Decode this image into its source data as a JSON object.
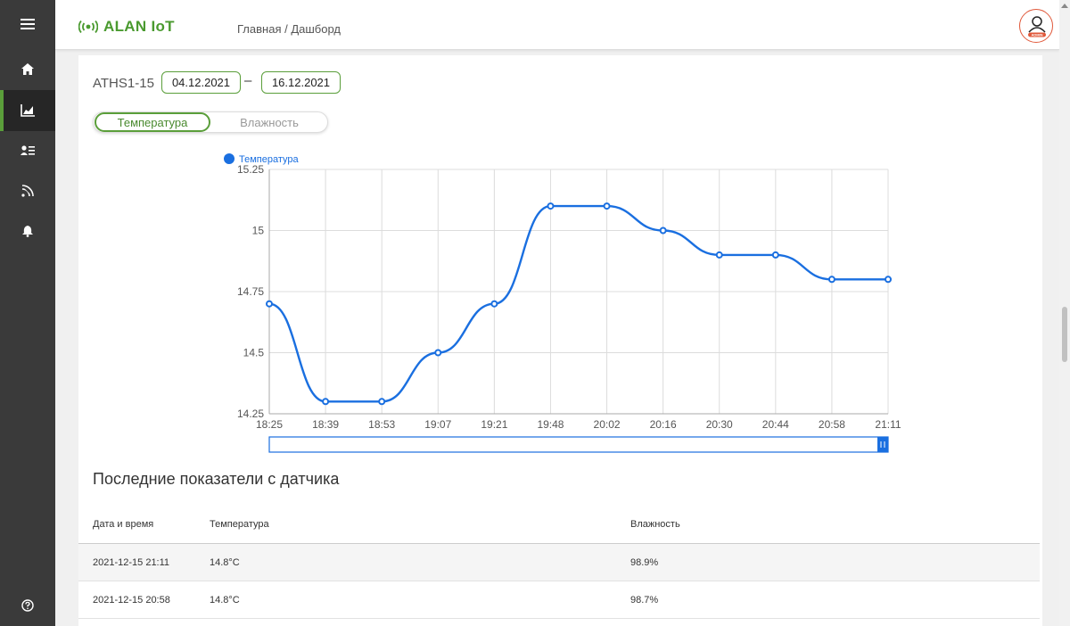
{
  "app": {
    "name": "ALAN IoT",
    "breadcrumb": "Главная / Дашборд",
    "avatar_label": "ADMIN"
  },
  "sidebar": {
    "items": [
      {
        "icon": "menu-icon"
      },
      {
        "icon": "home-icon"
      },
      {
        "icon": "chart-icon",
        "active": true
      },
      {
        "icon": "users-icon"
      },
      {
        "icon": "sensor-icon"
      },
      {
        "icon": "bell-icon"
      },
      {
        "icon": "help-icon"
      }
    ]
  },
  "filters": {
    "device": "ATHS1-15",
    "date_from": "04.12.2021",
    "separator": "–",
    "date_to": "16.12.2021"
  },
  "toggle": {
    "active": "Температура",
    "inactive": "Влажность"
  },
  "chart_data": {
    "type": "line",
    "categories": [
      "18:25",
      "18:39",
      "18:53",
      "19:07",
      "19:21",
      "19:48",
      "20:02",
      "20:16",
      "20:30",
      "20:44",
      "20:58",
      "21:11"
    ],
    "series": [
      {
        "name": "Температура",
        "values": [
          14.7,
          14.3,
          14.3,
          14.5,
          14.7,
          15.1,
          15.1,
          15.0,
          14.9,
          14.9,
          14.8,
          14.8
        ]
      }
    ],
    "y_ticks": [
      "15.25",
      "15",
      "14.75",
      "14.5",
      "14.25"
    ],
    "ylim": [
      14.25,
      15.25
    ],
    "grid": true,
    "legend": "top-left",
    "color": "#1a6fe0"
  },
  "latest": {
    "title": "Последние показатели с датчика",
    "headers": [
      "Дата и время",
      "Температура",
      "Влажность"
    ],
    "rows": [
      [
        "2021-12-15 21:11",
        "14.8°C",
        "98.9%"
      ],
      [
        "2021-12-15 20:58",
        "14.8°C",
        "98.7%"
      ]
    ]
  },
  "colors": {
    "accent": "#5a9e3a",
    "sidebar": "#3a3a3a",
    "line": "#1a6fe0"
  }
}
